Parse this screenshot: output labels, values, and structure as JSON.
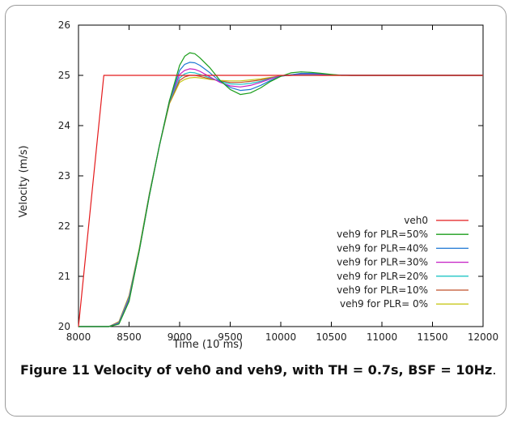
{
  "caption": {
    "label": "Figure 11",
    "text": "Velocity of veh0 and veh9, with TH = 0.7s, BSF = 10Hz",
    "period": "."
  },
  "chart_data": {
    "type": "line",
    "title": "",
    "xlabel": "Time (10 ms)",
    "ylabel": "Velocity (m/s)",
    "xlim": [
      8000,
      12000
    ],
    "ylim": [
      20,
      26
    ],
    "xticks": [
      8000,
      8500,
      9000,
      9500,
      10000,
      10500,
      11000,
      11500,
      12000
    ],
    "xtick_labels": [
      "8000",
      "8500",
      "9000",
      "9500",
      "10000",
      "10500",
      "11000",
      "11500",
      "12000"
    ],
    "yticks": [
      20,
      21,
      22,
      23,
      24,
      25,
      26
    ],
    "ytick_labels": [
      "20",
      "21",
      "22",
      "23",
      "24",
      "25",
      "26"
    ],
    "grid": false,
    "legend_position": "bottom-right",
    "series": [
      {
        "name": "veh0",
        "color": "#e41a1c",
        "x": [
          8000,
          8250,
          12000
        ],
        "y": [
          20,
          25,
          25
        ]
      },
      {
        "name": "veh9 for PLR=50%",
        "color": "#1b9e1b",
        "x": [
          8000,
          8300,
          8400,
          8500,
          8600,
          8700,
          8800,
          8900,
          9000,
          9050,
          9100,
          9150,
          9200,
          9300,
          9400,
          9500,
          9600,
          9700,
          9800,
          9900,
          10000,
          10100,
          10200,
          10300,
          10400,
          10500,
          10600,
          10700,
          11000,
          12000
        ],
        "y": [
          20,
          20.0,
          20.05,
          20.5,
          21.5,
          22.6,
          23.6,
          24.5,
          25.2,
          25.38,
          25.45,
          25.43,
          25.35,
          25.15,
          24.9,
          24.72,
          24.62,
          24.65,
          24.75,
          24.88,
          24.98,
          25.05,
          25.07,
          25.06,
          25.04,
          25.02,
          25.0,
          25.0,
          25.0,
          25.0
        ]
      },
      {
        "name": "veh9 for PLR=40%",
        "color": "#1f78d4",
        "x": [
          8000,
          8300,
          8400,
          8500,
          8600,
          8700,
          8800,
          8900,
          9000,
          9050,
          9100,
          9150,
          9200,
          9300,
          9400,
          9500,
          9600,
          9700,
          9800,
          9900,
          10000,
          10200,
          10300,
          10400,
          10500,
          10700,
          12000
        ],
        "y": [
          20,
          20.0,
          20.06,
          20.52,
          21.5,
          22.6,
          23.6,
          24.5,
          25.1,
          25.22,
          25.26,
          25.25,
          25.2,
          25.05,
          24.88,
          24.76,
          24.7,
          24.72,
          24.8,
          24.9,
          24.98,
          25.04,
          25.04,
          25.03,
          25.01,
          25.0,
          25.0
        ]
      },
      {
        "name": "veh9 for PLR=30%",
        "color": "#c41ec4",
        "x": [
          8000,
          8300,
          8400,
          8500,
          8600,
          8700,
          8800,
          8900,
          9000,
          9050,
          9100,
          9150,
          9200,
          9300,
          9400,
          9500,
          9600,
          9700,
          9800,
          9900,
          10000,
          10200,
          10300,
          10500,
          10700,
          12000
        ],
        "y": [
          20,
          20.0,
          20.07,
          20.55,
          21.5,
          22.6,
          23.6,
          24.5,
          25.02,
          25.1,
          25.13,
          25.12,
          25.08,
          24.97,
          24.86,
          24.79,
          24.77,
          24.8,
          24.86,
          24.93,
          24.99,
          25.03,
          25.03,
          25.01,
          25.0,
          25.0
        ]
      },
      {
        "name": "veh9 for PLR=20%",
        "color": "#20c4c4",
        "x": [
          8000,
          8300,
          8400,
          8500,
          8600,
          8700,
          8800,
          8900,
          9000,
          9050,
          9100,
          9150,
          9200,
          9300,
          9400,
          9500,
          9600,
          9700,
          9800,
          9900,
          10000,
          10200,
          10400,
          10700,
          12000
        ],
        "y": [
          20,
          20.0,
          20.08,
          20.58,
          21.52,
          22.62,
          23.6,
          24.48,
          24.95,
          25.03,
          25.06,
          25.05,
          25.02,
          24.95,
          24.88,
          24.83,
          24.82,
          24.84,
          24.88,
          24.94,
          24.99,
          25.02,
          25.01,
          25.0,
          25.0
        ]
      },
      {
        "name": "veh9 for PLR=10%",
        "color": "#c0502a",
        "x": [
          8000,
          8300,
          8400,
          8500,
          8600,
          8700,
          8800,
          8900,
          9000,
          9050,
          9100,
          9150,
          9200,
          9300,
          9400,
          9500,
          9600,
          9700,
          9800,
          9900,
          10000,
          10200,
          10400,
          10700,
          12000
        ],
        "y": [
          20,
          20.0,
          20.09,
          20.6,
          21.53,
          22.63,
          23.6,
          24.46,
          24.9,
          24.97,
          25.0,
          25.0,
          24.98,
          24.93,
          24.89,
          24.86,
          24.86,
          24.88,
          24.91,
          24.95,
          24.99,
          25.01,
          25.01,
          25.0,
          25.0
        ]
      },
      {
        "name": "veh9 for PLR=  0%",
        "color": "#c8c81e",
        "x": [
          8000,
          8300,
          8400,
          8500,
          8600,
          8700,
          8800,
          8900,
          9000,
          9050,
          9100,
          9150,
          9200,
          9300,
          9400,
          9500,
          9600,
          9700,
          9800,
          9900,
          10000,
          10200,
          10400,
          10700,
          12000
        ],
        "y": [
          20,
          20.0,
          20.1,
          20.62,
          21.55,
          22.64,
          23.6,
          24.44,
          24.86,
          24.92,
          24.95,
          24.96,
          24.95,
          24.92,
          24.9,
          24.89,
          24.89,
          24.91,
          24.93,
          24.96,
          24.99,
          25.01,
          25.0,
          25.0,
          25.0
        ]
      }
    ]
  }
}
